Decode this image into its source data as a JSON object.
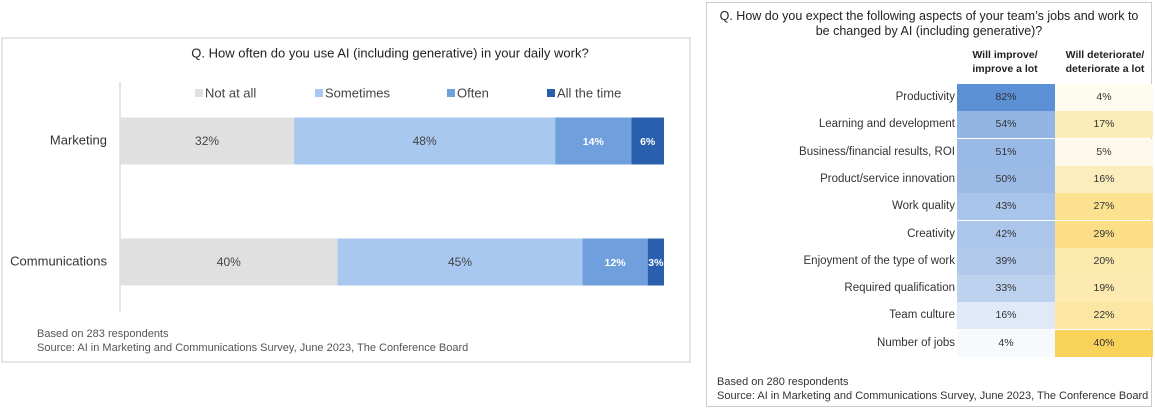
{
  "chart_data": {
    "type": "bar",
    "orientation": "horizontal",
    "stacked": true,
    "title": "Q. How often do you use AI (including generative) in your daily work?",
    "categories": [
      "Marketing",
      "Communications"
    ],
    "xlim": [
      0,
      100
    ],
    "series": [
      {
        "name": "Not at all",
        "color": "#e0e0e0",
        "values": [
          32,
          40
        ],
        "value_labels": [
          "32%",
          "40%"
        ]
      },
      {
        "name": "Sometimes",
        "color": "#a9c8f0",
        "values": [
          48,
          45
        ],
        "value_labels": [
          "48%",
          "45%"
        ]
      },
      {
        "name": "Often",
        "color": "#6f9fdc",
        "values": [
          14,
          12
        ],
        "value_labels": [
          "14%",
          "12%"
        ]
      },
      {
        "name": "All the time",
        "color": "#2a5fae",
        "values": [
          6,
          3
        ],
        "value_labels": [
          "6%",
          "3%"
        ]
      }
    ],
    "footnotes": [
      "Based on 283 respondents",
      "Source: AI in Marketing and Communications Survey, June 2023, The Conference Board"
    ]
  },
  "table": {
    "title": "Q. How do you expect the following aspects of your team’s jobs and work to be changed by AI (including generative)?",
    "columns": [
      "Will improve/ improve a lot",
      "Will deteriorate/ deteriorate a lot"
    ],
    "rows": [
      [
        "Productivity",
        "82%",
        "4%"
      ],
      [
        "Learning and development",
        "54%",
        "17%"
      ],
      [
        "Business/financial results, ROI",
        "51%",
        "5%"
      ],
      [
        "Product/service innovation",
        "50%",
        "16%"
      ],
      [
        "Work quality",
        "43%",
        "27%"
      ],
      [
        "Creativity",
        "42%",
        "29%"
      ],
      [
        "Enjoyment of the type of work",
        "39%",
        "20%"
      ],
      [
        "Required qualification",
        "33%",
        "19%"
      ],
      [
        "Team culture",
        "16%",
        "22%"
      ],
      [
        "Number of jobs",
        "4%",
        "40%"
      ]
    ],
    "footnotes": [
      "Based on 280 respondents",
      "Source: AI in Marketing and Communications Survey, June 2023, The Conference Board"
    ]
  }
}
